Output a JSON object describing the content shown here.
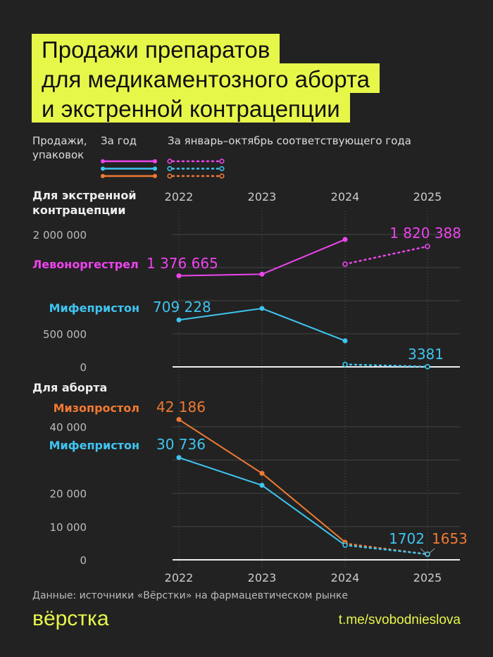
{
  "title_lines": [
    "Продажи препаратов",
    "для медикаментозного аборта",
    "и экстренной контрацепции"
  ],
  "legend": {
    "units": "Продажи, упаковок",
    "full_year": "За год",
    "partial": "За январь–октябрь соответствующего года"
  },
  "colors": {
    "background": "#222222",
    "accent": "#e7f74a",
    "levonorgestrel": "#ee44ee",
    "mifepristone": "#3ec5f0",
    "misoprostol": "#f07a32"
  },
  "source": "Данные: источники «Вёрстки» на фармацевтическом рынке",
  "logo": "вёрстка",
  "link": "t.me/svobodnieslova",
  "chart_data": [
    {
      "type": "line",
      "title": "Для экстренной контрацепции",
      "x": [
        2022,
        2023,
        2024,
        2025
      ],
      "ylim": [
        0,
        2000000
      ],
      "yticks": [
        {
          "v": 0,
          "label": "0"
        },
        {
          "v": 500000,
          "label": "500 000"
        },
        {
          "v": 1000000,
          "label": ""
        },
        {
          "v": 1500000,
          "label": ""
        },
        {
          "v": 2000000,
          "label": "2 000 000"
        }
      ],
      "series": [
        {
          "name": "Левоноргестрел",
          "key": "levonorgestrel",
          "full_year": [
            1376665,
            1400000,
            1925000,
            null
          ],
          "partial": [
            null,
            null,
            1553000,
            1820388
          ],
          "labels": {
            "2022": "1 376 665",
            "2025": "1 820 388"
          }
        },
        {
          "name": "Мифепристон",
          "key": "mifepristone",
          "full_year": [
            709228,
            883000,
            394000,
            null
          ],
          "partial": [
            null,
            null,
            37000,
            3381
          ],
          "labels": {
            "2022": "709 228",
            "2025": "3381"
          }
        }
      ]
    },
    {
      "type": "line",
      "title": "Для аборта",
      "x": [
        2022,
        2023,
        2024,
        2025
      ],
      "ylim": [
        0,
        40000
      ],
      "yticks": [
        {
          "v": 0,
          "label": "0"
        },
        {
          "v": 10000,
          "label": "10 000"
        },
        {
          "v": 20000,
          "label": "20 000"
        },
        {
          "v": 30000,
          "label": ""
        },
        {
          "v": 40000,
          "label": "40 000"
        }
      ],
      "series": [
        {
          "name": "Мизопростол",
          "key": "misoprostol",
          "full_year": [
            42186,
            26000,
            5300,
            null
          ],
          "partial": [
            null,
            null,
            4900,
            1653
          ],
          "labels": {
            "2022": "42 186",
            "2025": "1653"
          }
        },
        {
          "name": "Мифепристон",
          "key": "mifepristone",
          "full_year": [
            30736,
            22400,
            4400,
            null
          ],
          "partial": [
            null,
            null,
            4400,
            1702
          ],
          "labels": {
            "2022": "30 736",
            "2025": "1702"
          }
        }
      ]
    }
  ]
}
